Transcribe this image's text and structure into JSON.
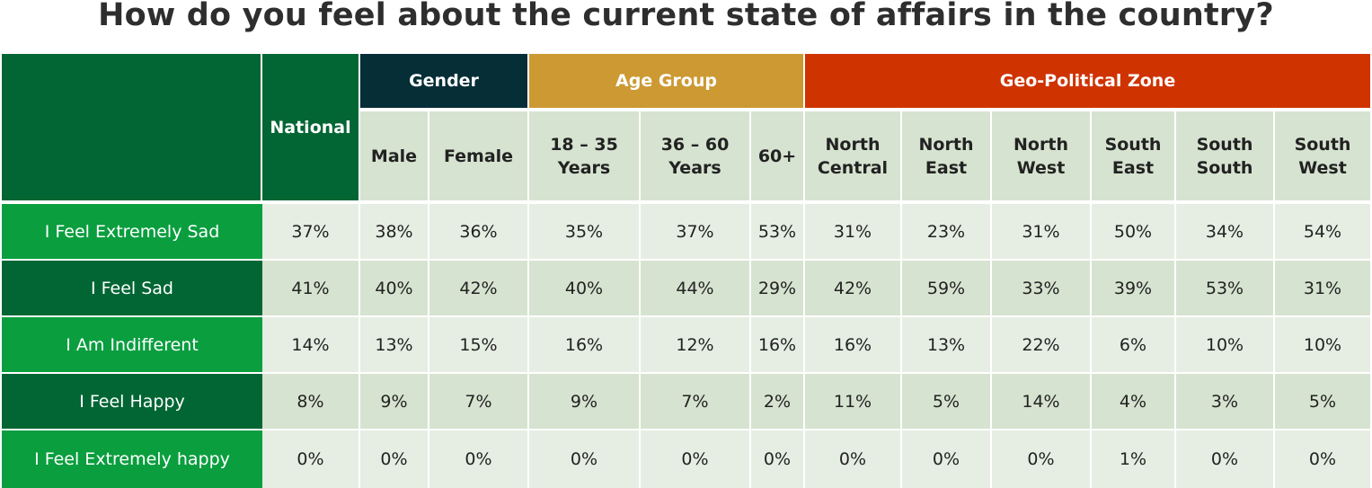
{
  "chart_data": {
    "type": "table",
    "title": "How do you feel about the current state of affairs in the country?",
    "groups": [
      {
        "label": "National",
        "color": "#026634",
        "columns": [
          "National"
        ]
      },
      {
        "label": "Gender",
        "color": "#052e37",
        "columns": [
          "Male",
          "Female"
        ]
      },
      {
        "label": "Age Group",
        "color": "#cc9933",
        "columns": [
          "18 – 35 Years",
          "36 – 60 Years",
          "60+"
        ]
      },
      {
        "label": "Geo-Political Zone",
        "color": "#cf3300",
        "columns": [
          "North Central",
          "North East",
          "North West",
          "South East",
          "South South",
          "South West"
        ]
      }
    ],
    "columns": [
      {
        "l1": "National",
        "l2": ""
      },
      {
        "l1": "Male",
        "l2": ""
      },
      {
        "l1": "Female",
        "l2": ""
      },
      {
        "l1": "18 – 35",
        "l2": "Years"
      },
      {
        "l1": "36 – 60",
        "l2": "Years"
      },
      {
        "l1": "60+",
        "l2": ""
      },
      {
        "l1": "North",
        "l2": "Central"
      },
      {
        "l1": "North",
        "l2": "East"
      },
      {
        "l1": "North",
        "l2": "West"
      },
      {
        "l1": "South",
        "l2": "East"
      },
      {
        "l1": "South",
        "l2": "South"
      },
      {
        "l1": "South",
        "l2": "West"
      }
    ],
    "rows": [
      {
        "label": "I Feel Extremely Sad",
        "values": [
          "37%",
          "38%",
          "36%",
          "35%",
          "37%",
          "53%",
          "31%",
          "23%",
          "31%",
          "50%",
          "34%",
          "54%"
        ]
      },
      {
        "label": "I Feel Sad",
        "values": [
          "41%",
          "40%",
          "42%",
          "40%",
          "44%",
          "29%",
          "42%",
          "59%",
          "33%",
          "39%",
          "53%",
          "31%"
        ]
      },
      {
        "label": "I Am Indifferent",
        "values": [
          "14%",
          "13%",
          "15%",
          "16%",
          "12%",
          "16%",
          "16%",
          "13%",
          "22%",
          "6%",
          "10%",
          "10%"
        ]
      },
      {
        "label": "I Feel Happy",
        "values": [
          "8%",
          "9%",
          "7%",
          "9%",
          "7%",
          "2%",
          "11%",
          "5%",
          "14%",
          "4%",
          "3%",
          "5%"
        ]
      },
      {
        "label": "I Feel Extremely happy",
        "values": [
          "0%",
          "0%",
          "0%",
          "0%",
          "0%",
          "0%",
          "0%",
          "0%",
          "0%",
          "1%",
          "0%",
          "0%"
        ]
      }
    ],
    "colors": {
      "corner": "#026634",
      "row_label_light": "#0a9e3f",
      "row_label_dark": "#026634",
      "subheader_bg": "#d6e3d0",
      "cell_light": "#e6eee3",
      "cell_dark": "#d6e3d0"
    }
  }
}
